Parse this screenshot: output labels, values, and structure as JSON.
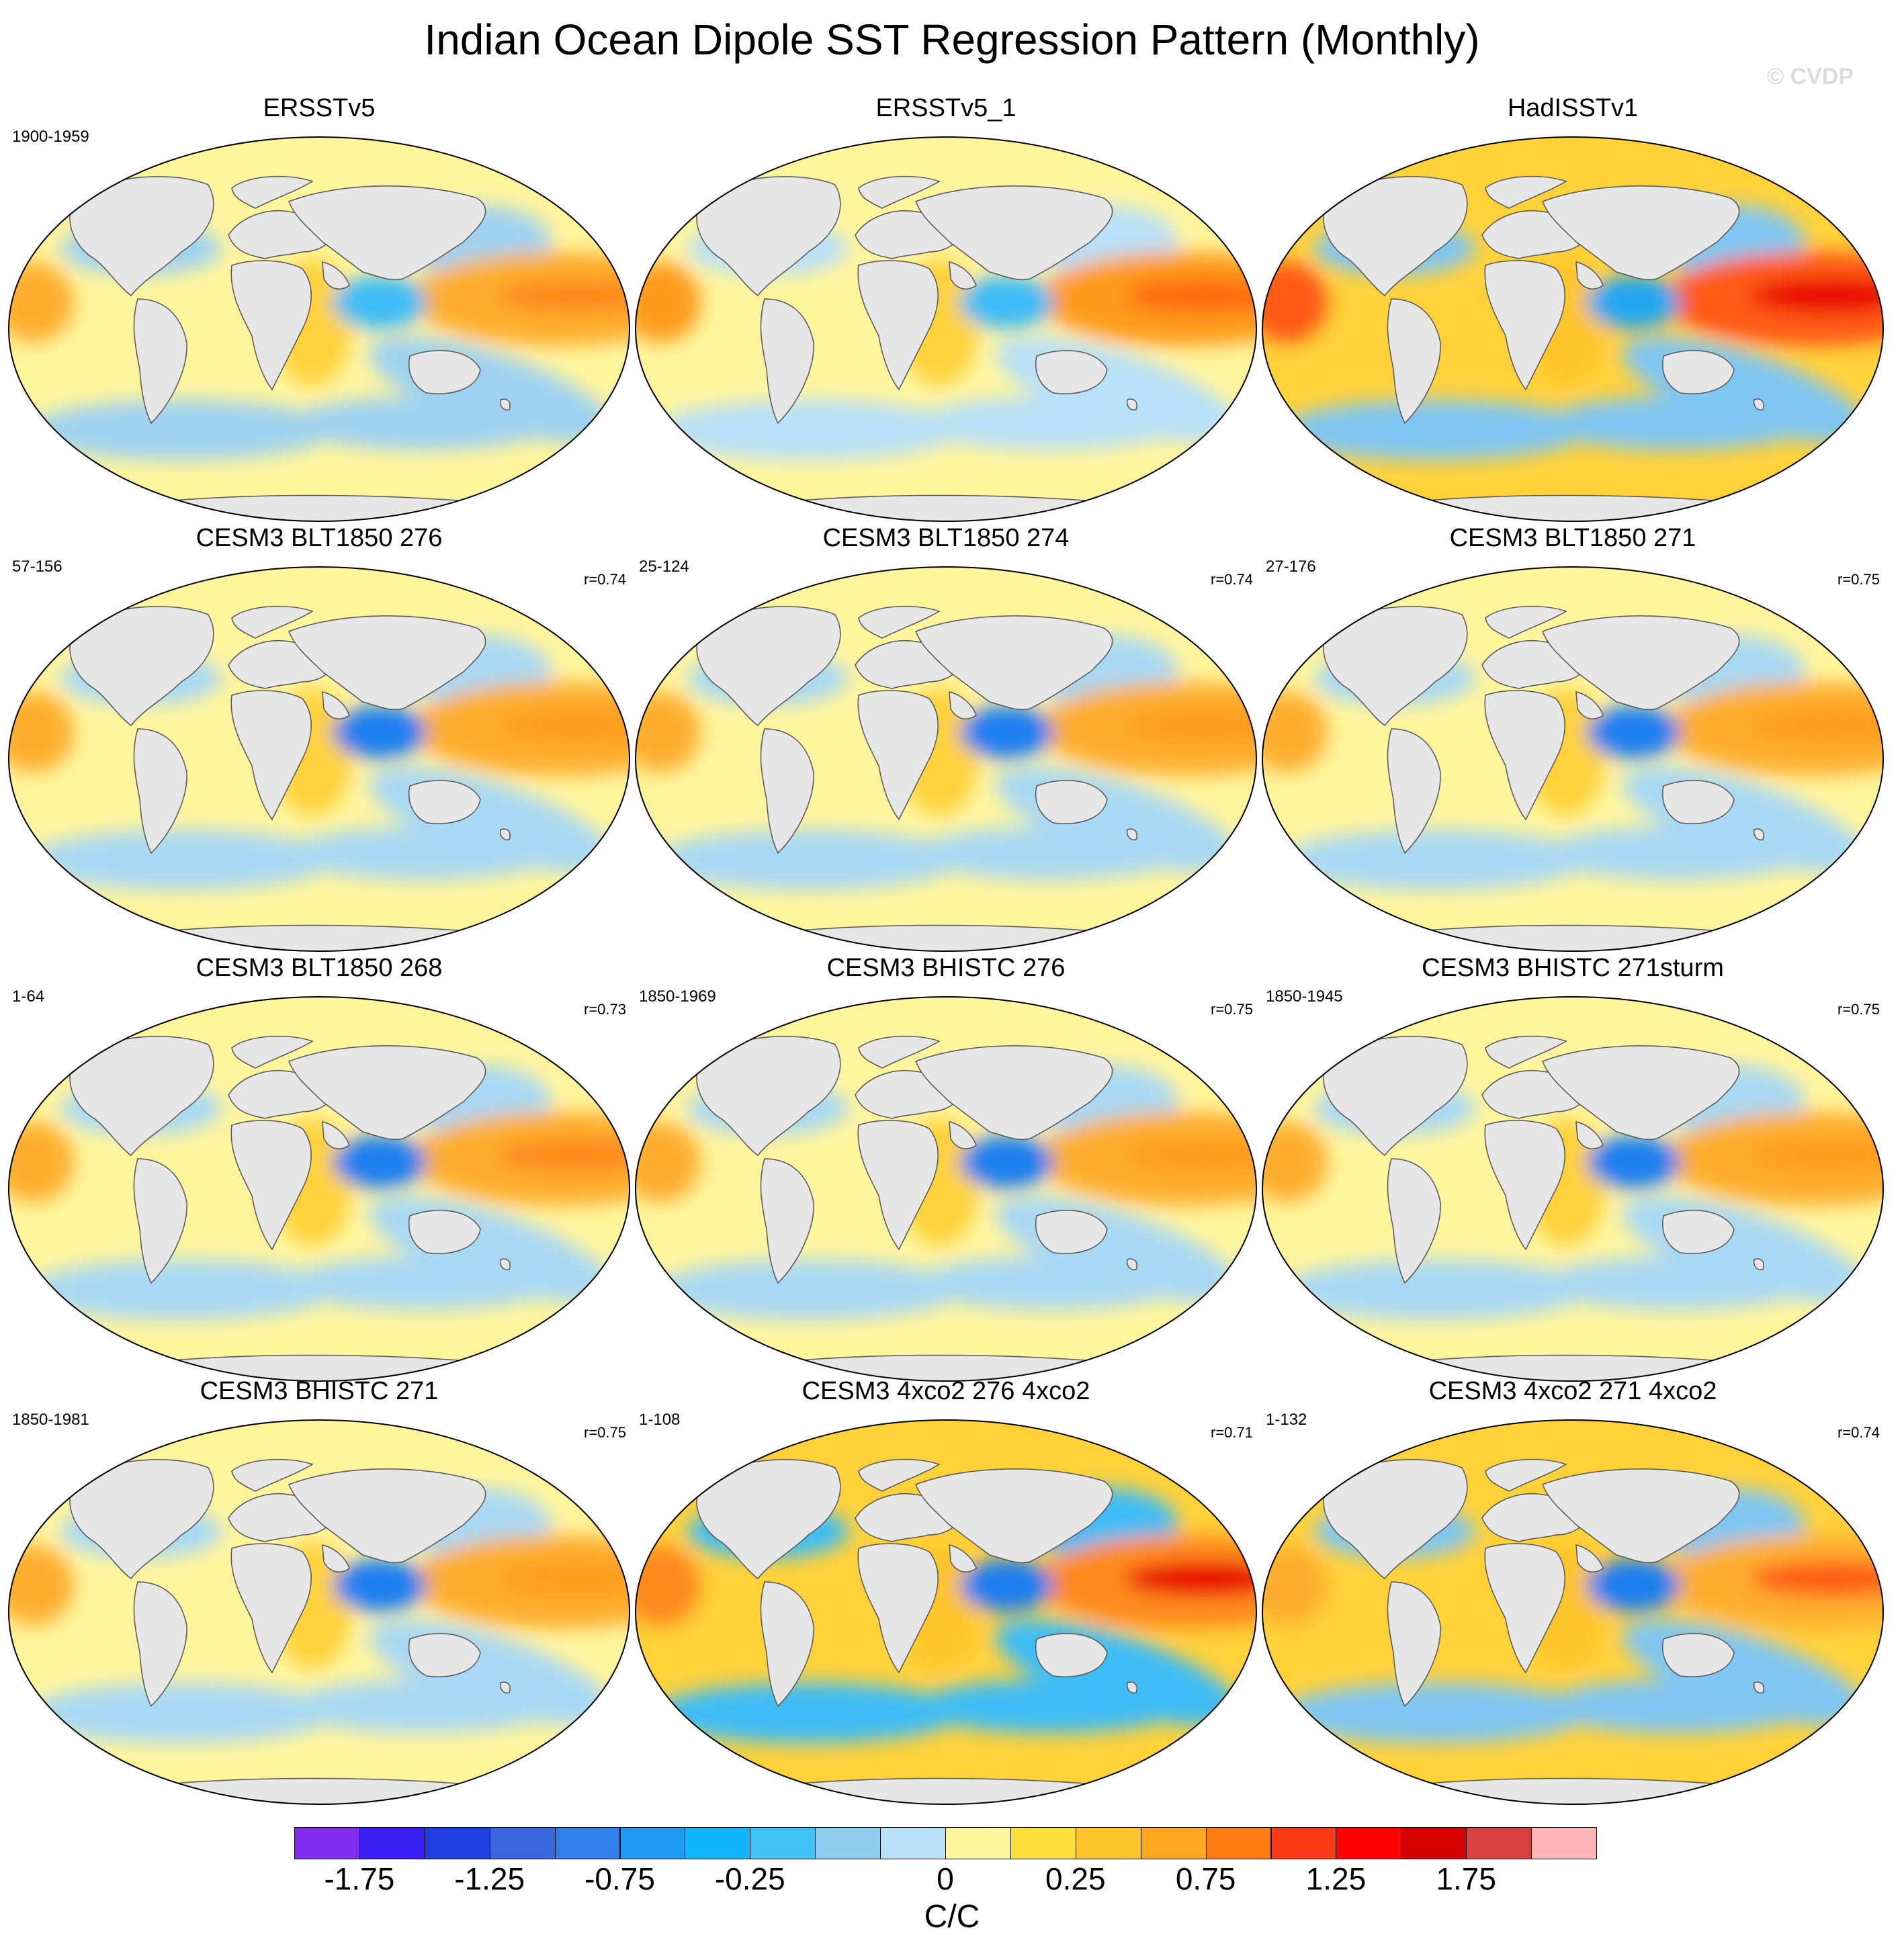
{
  "title": "Indian Ocean Dipole SST Regression Pattern (Monthly)",
  "watermark": "© CVDP",
  "panels": [
    {
      "title": "ERSSTv5",
      "period": "1900-1959",
      "r": "",
      "pacific": "#fdae2e",
      "indian_west": "#ffd23a",
      "indian_east": "#3cbcf5",
      "general": "#fff59d",
      "cool": "#9fd2f0",
      "peak": "#ff8a1c"
    },
    {
      "title": "ERSSTv5_1",
      "period": "",
      "r": "",
      "pacific": "#ff9b1f",
      "indian_west": "#ffd23a",
      "indian_east": "#3cbcf5",
      "general": "#fff59d",
      "cool": "#b8e0f7",
      "peak": "#ff6a10"
    },
    {
      "title": "HadISSTv1",
      "period": "",
      "r": "",
      "pacific": "#ff5a12",
      "indian_west": "#ffc52b",
      "indian_east": "#24a6f0",
      "general": "#ffd23a",
      "cool": "#7fc6f2",
      "peak": "#e80000"
    },
    {
      "title": "CESM3 BLT1850 276",
      "period": "57-156",
      "r": "r=0.74",
      "pacific": "#fdae2e",
      "indian_west": "#ffd23a",
      "indian_east": "#1f7ff0",
      "general": "#fff59d",
      "cool": "#a8d8f3",
      "peak": "#ff9b1f"
    },
    {
      "title": "CESM3 BLT1850 274",
      "period": "25-124",
      "r": "r=0.74",
      "pacific": "#fdae2e",
      "indian_west": "#ffd23a",
      "indian_east": "#1f7ff0",
      "general": "#fff59d",
      "cool": "#a8d8f3",
      "peak": "#ff9b1f"
    },
    {
      "title": "CESM3 BLT1850 271",
      "period": "27-176",
      "r": "r=0.75",
      "pacific": "#fdae2e",
      "indian_west": "#ffd23a",
      "indian_east": "#1f7ff0",
      "general": "#fff59d",
      "cool": "#a8d8f3",
      "peak": "#ff9b1f"
    },
    {
      "title": "CESM3 BLT1850 268",
      "period": "1-64",
      "r": "r=0.73",
      "pacific": "#fdae2e",
      "indian_west": "#ffd23a",
      "indian_east": "#1f7ff0",
      "general": "#fff59d",
      "cool": "#a8d8f3",
      "peak": "#ff8a1c"
    },
    {
      "title": "CESM3 BHISTC 276",
      "period": "1850-1969",
      "r": "r=0.75",
      "pacific": "#fdae2e",
      "indian_west": "#ffd23a",
      "indian_east": "#1f7ff0",
      "general": "#fff59d",
      "cool": "#a8d8f3",
      "peak": "#ff9b1f"
    },
    {
      "title": "CESM3 BHISTC 271sturm",
      "period": "1850-1945",
      "r": "r=0.75",
      "pacific": "#fdae2e",
      "indian_west": "#ffd23a",
      "indian_east": "#1f7ff0",
      "general": "#fff59d",
      "cool": "#a8d8f3",
      "peak": "#ff9b1f"
    },
    {
      "title": "CESM3 BHISTC 271",
      "period": "1850-1981",
      "r": "r=0.75",
      "pacific": "#fdae2e",
      "indian_west": "#ffd23a",
      "indian_east": "#1f7ff0",
      "general": "#fff59d",
      "cool": "#a8d8f3",
      "peak": "#ff9b1f"
    },
    {
      "title": "CESM3 4xco2 276 4xco2",
      "period": "1-108",
      "r": "r=0.71",
      "pacific": "#ff8a1c",
      "indian_west": "#ffc52b",
      "indian_east": "#1f7ff0",
      "general": "#ffd23a",
      "cool": "#3cbcf5",
      "peak": "#e80000"
    },
    {
      "title": "CESM3 4xco2 271 4xco2",
      "period": "1-132",
      "r": "r=0.74",
      "pacific": "#fdae2e",
      "indian_west": "#ffc52b",
      "indian_east": "#1f7ff0",
      "general": "#ffd23a",
      "cool": "#7fc6f2",
      "peak": "#ff5a12"
    }
  ],
  "colorbar": {
    "units": "C/C",
    "colors": [
      "#7f2cf0",
      "#3a1ff5",
      "#1f3fe0",
      "#3a66e0",
      "#2f80ec",
      "#1f9af5",
      "#10b6ff",
      "#40c4f8",
      "#8fcdee",
      "#b8e0f7",
      "#fff59d",
      "#ffe03a",
      "#ffc52b",
      "#ffa71f",
      "#ff7a10",
      "#ff3a14",
      "#ff0000",
      "#d40000",
      "#d94040",
      "#ffb6b6"
    ],
    "labels": [
      "-1.75",
      "-1.25",
      "-0.75",
      "-0.25",
      "0",
      "0.25",
      "0.75",
      "1.25",
      "1.75"
    ]
  }
}
